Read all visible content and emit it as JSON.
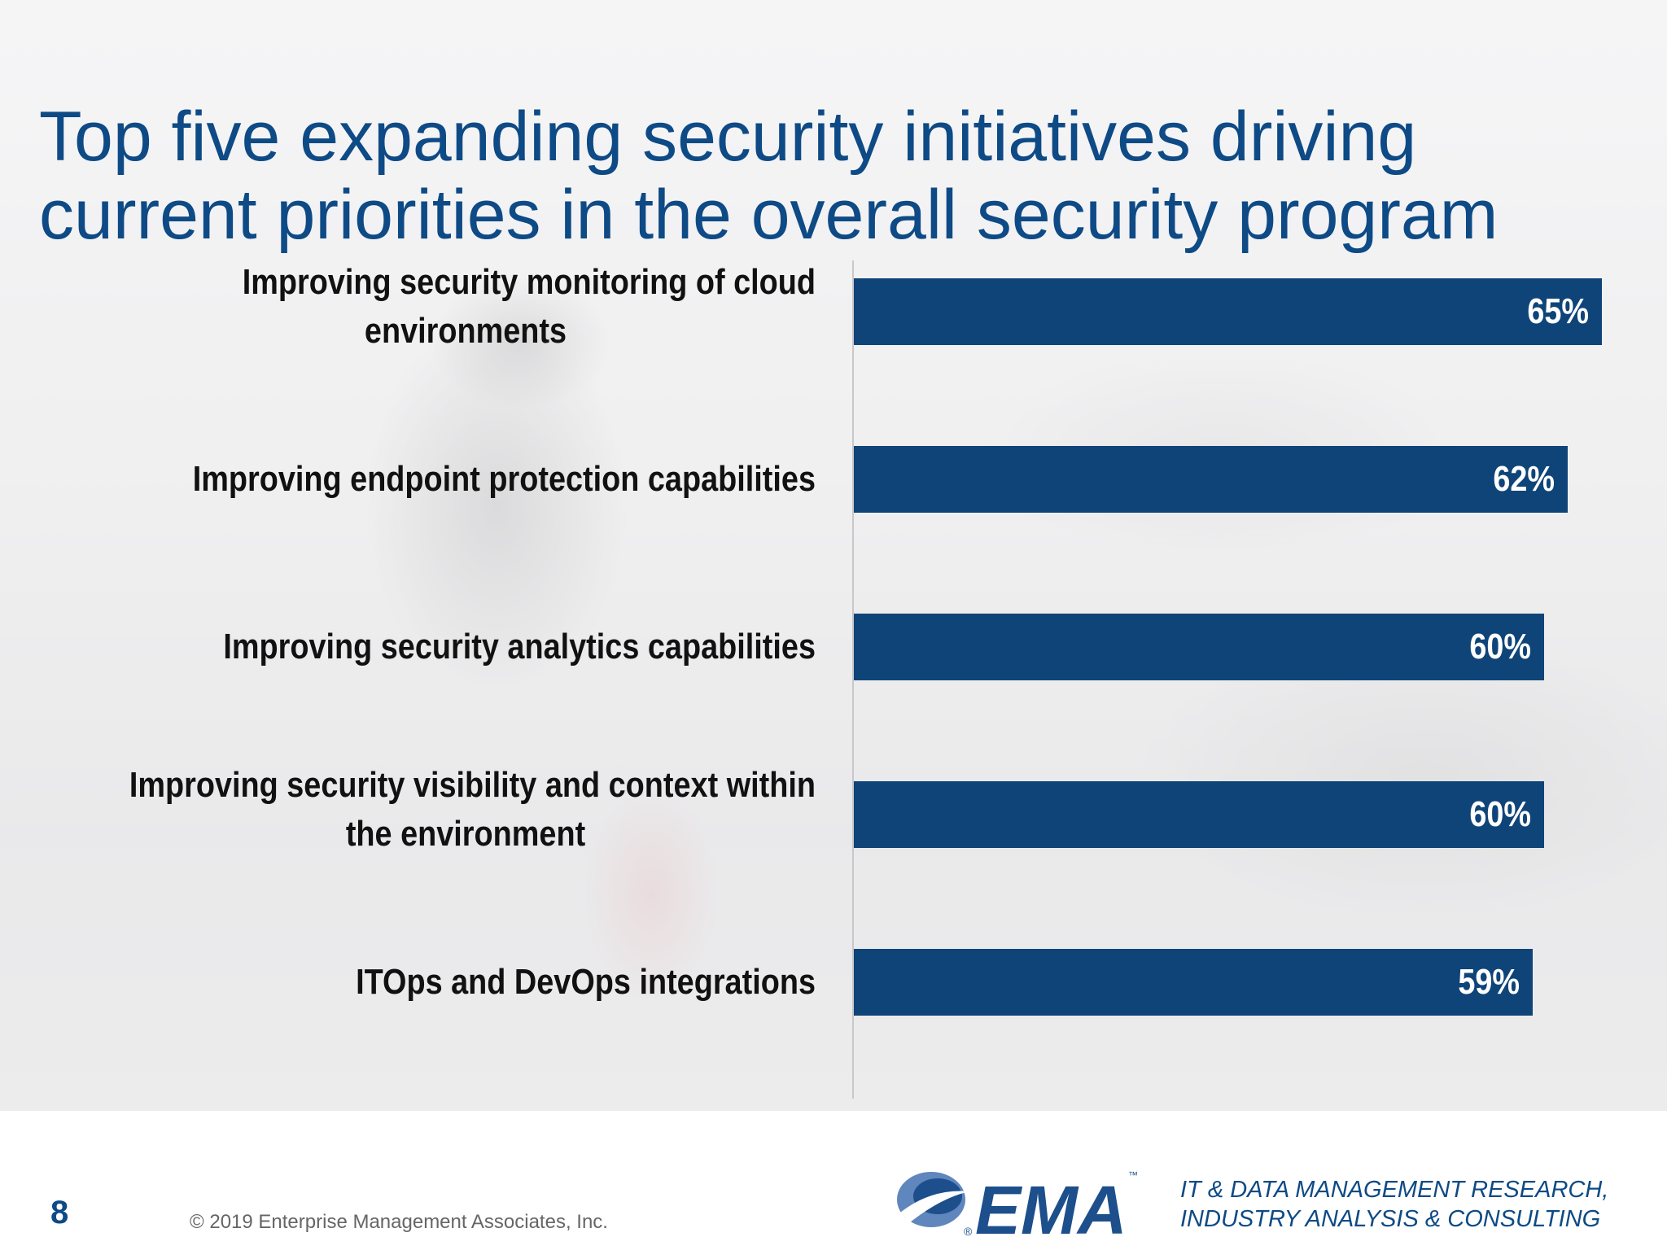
{
  "title": {
    "line1": "Top five expanding security initiatives driving",
    "line2": "current priorities in the overall security program"
  },
  "chart_data": {
    "type": "bar",
    "orientation": "horizontal",
    "categories": [
      "Improving security monitoring of cloud environments",
      "Improving endpoint protection capabilities",
      "Improving security analytics capabilities",
      "Improving security visibility and context within the environment",
      "ITOps and DevOps integrations"
    ],
    "category_lines": [
      [
        "Improving security monitoring of cloud",
        "environments"
      ],
      [
        "Improving endpoint protection capabilities"
      ],
      [
        "Improving security analytics capabilities"
      ],
      [
        "Improving security visibility and context within",
        "the environment"
      ],
      [
        "ITOps and DevOps integrations"
      ]
    ],
    "values": [
      65,
      62,
      60,
      60,
      59
    ],
    "value_labels": [
      "65%",
      "62%",
      "60%",
      "60%",
      "59%"
    ],
    "unit": "%",
    "bar_color": "#0f4479",
    "xlim": [
      0,
      65
    ],
    "grid": false,
    "legend": "none"
  },
  "footer": {
    "page_number": "8",
    "copyright": "© 2019 Enterprise Management Associates, Inc.",
    "logo_text": "EMA",
    "logo_registered": "®",
    "logo_tm": "™",
    "tagline_line1": "IT & DATA MANAGEMENT RESEARCH,",
    "tagline_line2": "INDUSTRY ANALYSIS & CONSULTING"
  },
  "colors": {
    "title": "#0e4a85",
    "bar": "#0f4479",
    "logo_blue": "#1c4f8c"
  }
}
